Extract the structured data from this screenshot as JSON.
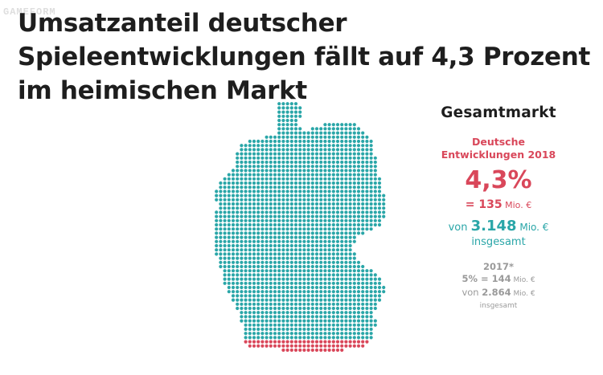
{
  "title": "Umsatzanteil deutscher Spieleentwicklungen fällt auf 4,3 Prozent im heimischen Markt",
  "watermark": "GAMEFORM",
  "panel": {
    "heading": "Gesamtmarkt",
    "de_label_line1": "Deutsche",
    "de_label_line2": "Entwicklungen 2018",
    "de_percent": "4,3%",
    "de_amount_prefix": "= ",
    "de_amount_value": "135",
    "de_amount_unit": " Mio. €",
    "total_prefix": "von ",
    "total_value": "3.148",
    "total_unit": " Mio. €",
    "total_suffix": "insgesamt",
    "prev_year": "2017*",
    "prev_share_prefix": "5% = ",
    "prev_share_value": "144",
    "prev_share_unit": " Mio. €",
    "prev_total_prefix": "von ",
    "prev_total_value": "2.864",
    "prev_total_unit": " Mio. €",
    "prev_total_suffix": "insgesamt"
  },
  "colors": {
    "teal": "#2aa6a8",
    "red": "#d9475a",
    "grey": "#9a9a9a"
  },
  "map": {
    "share_german_percent": 4.3
  }
}
